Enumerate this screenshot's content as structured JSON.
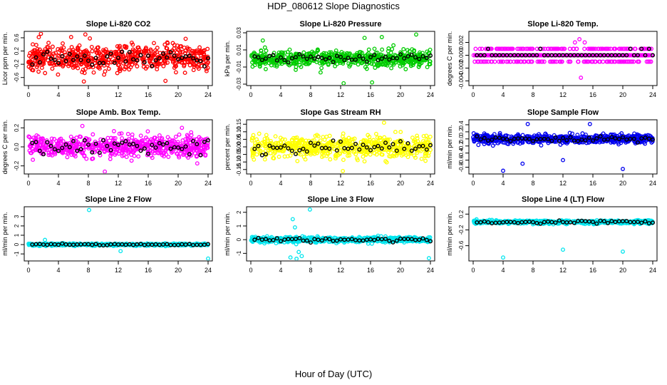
{
  "page": {
    "title": "HDP_080612  Slope Diagnostics",
    "xlabel": "Hour of Day (UTC)"
  },
  "chart_data": [
    {
      "type": "scatter",
      "title": "Slope Li-820 CO2",
      "ylabel": "Licor ppm per min.",
      "color": "#ff0000",
      "xlim": [
        0,
        24
      ],
      "xticks": [
        0,
        4,
        8,
        12,
        16,
        20,
        24
      ],
      "ylim": [
        -0.8,
        0.75
      ],
      "yticks": [
        -0.6,
        -0.2,
        0.2,
        0.6
      ],
      "ytick_labels": [
        "-0.6",
        "-0.2",
        "0.2",
        "0.6"
      ],
      "spread": 0.45,
      "hourly_spread": 0.12,
      "seed": 11,
      "outliers": [
        {
          "x": 5.7,
          "y": 0.62
        },
        {
          "x": 7.6,
          "y": 0.7
        },
        {
          "x": 8.2,
          "y": 0.58
        },
        {
          "x": 7.4,
          "y": -0.72
        },
        {
          "x": 18.3,
          "y": -0.7
        },
        {
          "x": 13.8,
          "y": 0.45
        }
      ]
    },
    {
      "type": "scatter",
      "title": "Slope Li-820 Pressure",
      "ylabel": "kPa per min.",
      "color": "#00cc00",
      "xlim": [
        0,
        24
      ],
      "xticks": [
        0,
        4,
        8,
        12,
        16,
        20,
        24
      ],
      "ylim": [
        -0.03,
        0.03
      ],
      "yticks": [
        -0.03,
        -0.01,
        0.01,
        0.03
      ],
      "ytick_labels": [
        "-0.03",
        "-0.01",
        "0.01",
        "0.03"
      ],
      "spread": 0.01,
      "hourly_spread": 0.003,
      "seed": 23,
      "outliers": [
        {
          "x": 12.4,
          "y": -0.029
        },
        {
          "x": 16.2,
          "y": -0.028
        },
        {
          "x": 15.2,
          "y": 0.024
        },
        {
          "x": 17.5,
          "y": 0.025
        },
        {
          "x": 22.1,
          "y": 0.028
        },
        {
          "x": 1.6,
          "y": 0.021
        }
      ]
    },
    {
      "type": "scatter",
      "title": "Slope Li-820 Temp.",
      "ylabel": "degrees C per min.",
      "color": "#ff00ff",
      "xlim": [
        0,
        24
      ],
      "xticks": [
        0,
        4,
        8,
        12,
        16,
        20,
        24
      ],
      "ylim": [
        -0.0045,
        0.0035
      ],
      "yticks": [
        -0.004,
        -0.002,
        0.0,
        0.002
      ],
      "ytick_labels": [
        "-0.004",
        "-0.002",
        "0.000",
        "0.002"
      ],
      "quantized": true,
      "levels": [
        -0.001,
        0.0,
        0.001
      ],
      "seed": 37,
      "outliers": [
        {
          "x": 14.4,
          "y": -0.0035
        },
        {
          "x": 14.9,
          "y": 0.002
        },
        {
          "x": 14.2,
          "y": 0.0025
        },
        {
          "x": 13.6,
          "y": 0.002
        }
      ]
    },
    {
      "type": "scatter",
      "title": "Slope Amb. Box Temp.",
      "ylabel": "degrees C per min.",
      "color": "#ff00ff",
      "xlim": [
        0,
        24
      ],
      "xticks": [
        0,
        4,
        8,
        12,
        16,
        20,
        24
      ],
      "ylim": [
        -0.27,
        0.27
      ],
      "yticks": [
        -0.2,
        0.0,
        0.2
      ],
      "ytick_labels": [
        "-0.2",
        "0.0",
        "0.2"
      ],
      "spread": 0.12,
      "hourly_spread": 0.04,
      "seed": 41,
      "outliers": [
        {
          "x": 10.2,
          "y": -0.26
        },
        {
          "x": 7.2,
          "y": 0.22
        },
        {
          "x": 20.5,
          "y": 0.2
        }
      ]
    },
    {
      "type": "scatter",
      "title": "Slope Gas Stream RH",
      "ylabel": "percent per min.",
      "color": "#ffff00",
      "xlim": [
        0,
        24
      ],
      "xticks": [
        0,
        4,
        8,
        12,
        16,
        20,
        24
      ],
      "ylim": [
        -0.17,
        0.17
      ],
      "yticks": [
        -0.15,
        -0.1,
        -0.05,
        0.0,
        0.05,
        0.1,
        0.15
      ],
      "ytick_labels": [
        "-0.15",
        "-0.10",
        "-0.05",
        "0.00",
        "0.05",
        "0.10",
        "0.15"
      ],
      "spread": 0.08,
      "hourly_spread": 0.03,
      "seed": 53,
      "outliers": [
        {
          "x": 12.3,
          "y": -0.16
        },
        {
          "x": 17.8,
          "y": 0.16
        }
      ]
    },
    {
      "type": "scatter",
      "title": "Slope Sample Flow",
      "ylabel": "ml/min per min.",
      "color": "#0000ee",
      "xlim": [
        0,
        24
      ],
      "xticks": [
        0,
        4,
        8,
        12,
        16,
        20,
        24
      ],
      "ylim": [
        -0.95,
        0.5
      ],
      "yticks": [
        -0.8,
        -0.6,
        -0.4,
        -0.2,
        0.0,
        0.2,
        0.4
      ],
      "ytick_labels": [
        "-0.8",
        "-0.6",
        "-0.4",
        "-0.2",
        "0.0",
        "0.2",
        "0.4"
      ],
      "spread": 0.13,
      "hourly_spread": 0.04,
      "seed": 67,
      "outliers": [
        {
          "x": 4.0,
          "y": -0.9
        },
        {
          "x": 20.0,
          "y": -0.85
        },
        {
          "x": 12.0,
          "y": -0.6
        },
        {
          "x": 7.3,
          "y": 0.42
        },
        {
          "x": 15.6,
          "y": 0.42
        },
        {
          "x": 6.6,
          "y": -0.7
        }
      ]
    },
    {
      "type": "scatter",
      "title": "Slope Line 2 Flow",
      "ylabel": "ml/min per min.",
      "color": "#00e5ee",
      "xlim": [
        0,
        24
      ],
      "xticks": [
        0,
        4,
        8,
        12,
        16,
        20,
        24
      ],
      "ylim": [
        -1.6,
        3.9
      ],
      "yticks": [
        -1,
        0,
        1,
        2,
        3
      ],
      "ytick_labels": [
        "-1",
        "0",
        "1",
        "2",
        "3"
      ],
      "spread": 0.12,
      "hourly_spread": 0.04,
      "seed": 71,
      "outliers": [
        {
          "x": 8.1,
          "y": 3.7
        },
        {
          "x": 24.0,
          "y": -1.5
        },
        {
          "x": 12.3,
          "y": -0.7
        },
        {
          "x": 2.2,
          "y": 0.5
        }
      ]
    },
    {
      "type": "scatter",
      "title": "Slope Line 3 Flow",
      "ylabel": "ml/min per min.",
      "color": "#00e5ee",
      "xlim": [
        0,
        24
      ],
      "xticks": [
        0,
        4,
        8,
        12,
        16,
        20,
        24
      ],
      "ylim": [
        -1.45,
        2.3
      ],
      "yticks": [
        -1,
        0,
        1,
        2
      ],
      "ytick_labels": [
        "-1",
        "0",
        "1",
        "2"
      ],
      "spread": 0.22,
      "hourly_spread": 0.08,
      "seed": 83,
      "outliers": [
        {
          "x": 7.9,
          "y": 2.2
        },
        {
          "x": 5.6,
          "y": 1.5
        },
        {
          "x": 6.1,
          "y": -1.4
        },
        {
          "x": 5.3,
          "y": -1.3
        },
        {
          "x": 6.8,
          "y": -1.2
        },
        {
          "x": 23.8,
          "y": -1.35
        },
        {
          "x": 5.9,
          "y": 0.9
        },
        {
          "x": 6.4,
          "y": -0.9
        }
      ]
    },
    {
      "type": "scatter",
      "title": "Slope Line 4 (LT) Flow",
      "ylabel": "ml/min per min.",
      "color": "#00e5ee",
      "xlim": [
        0,
        24
      ],
      "xticks": [
        0,
        4,
        8,
        12,
        16,
        20,
        24
      ],
      "ylim": [
        -0.95,
        0.35
      ],
      "yticks": [
        -0.6,
        -0.2,
        0.2
      ],
      "ytick_labels": [
        "-0.6",
        "-0.2",
        "0.2"
      ],
      "spread": 0.05,
      "hourly_spread": 0.02,
      "seed": 97,
      "outliers": [
        {
          "x": 4.0,
          "y": -0.9
        },
        {
          "x": 12.0,
          "y": -0.7
        },
        {
          "x": 20.0,
          "y": -0.75
        },
        {
          "x": 23.5,
          "y": -0.05
        }
      ]
    }
  ]
}
